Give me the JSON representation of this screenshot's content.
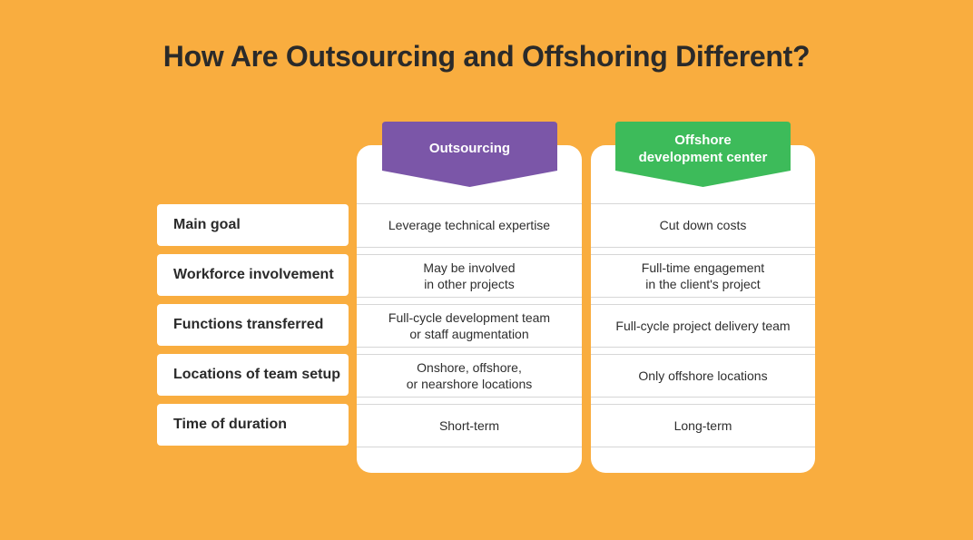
{
  "title": "How Are Outsourcing and Offshoring Different?",
  "columns": [
    {
      "label": "Outsourcing",
      "color": "#7b56a8"
    },
    {
      "label": "Offshore\ndevelopment center",
      "color": "#3dbb5a"
    }
  ],
  "rows": [
    {
      "label": "Main goal",
      "outsourcing": "Leverage technical expertise",
      "offshore": "Cut down costs"
    },
    {
      "label": "Workforce involvement",
      "outsourcing": "May be involved\nin other projects",
      "offshore": "Full-time engagement\nin the client's project"
    },
    {
      "label": "Functions transferred",
      "outsourcing": "Full-cycle development team\nor staff augmentation",
      "offshore": "Full-cycle project delivery team"
    },
    {
      "label": "Locations of team setup",
      "outsourcing": "Onshore, offshore,\nor nearshore locations",
      "offshore": "Only offshore locations"
    },
    {
      "label": "Time of duration",
      "outsourcing": "Short-term",
      "offshore": "Long-term"
    }
  ],
  "colors": {
    "background": "#f9ad3f",
    "card": "#ffffff"
  }
}
